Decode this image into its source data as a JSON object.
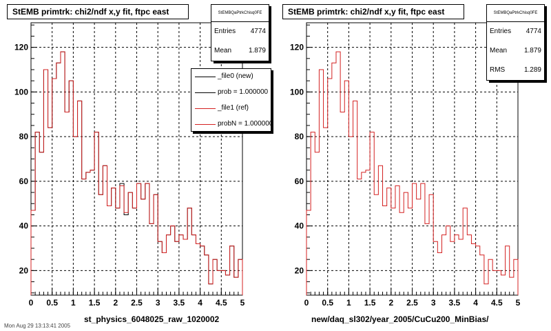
{
  "colors": {
    "new_color": "#000000",
    "ref_color": "#d42020",
    "frame": "#000000"
  },
  "panels": [
    {
      "title": "StEMB primtrk: chi2/ndf x,y fit, ftpc east",
      "xlabel": "st_physics_6048025_raw_1020002",
      "stats": {
        "name": "StEMBQaPtrkChisq0FE",
        "entries_label": "Entries",
        "entries": "4774",
        "mean_label": "Mean",
        "mean": "1.879"
      },
      "legend": [
        {
          "label": "_file0 (new)",
          "color": "#000000"
        },
        {
          "label": "prob = 1.000000",
          "color": "#000000"
        },
        {
          "label": "_file1 (ref)",
          "color": "#d42020"
        },
        {
          "label": "probN = 1.000000",
          "color": "#d42020"
        }
      ]
    },
    {
      "title": "StEMB primtrk: chi2/ndf x,y fit, ftpc east",
      "xlabel": "new/daq_sl302/year_2005/CuCu200_MinBias/",
      "stats": {
        "name": "StEMBQaPtrkChisq0FE",
        "entries_label": "Entries",
        "entries": "4774",
        "mean_label": "Mean",
        "mean": "1.879",
        "rms_label": "RMS",
        "rms": "1.289"
      }
    }
  ],
  "footer": "Mon Aug 29 13:13:41 2005",
  "chart_data": [
    {
      "type": "line",
      "title": "StEMB primtrk: chi2/ndf x,y fit, ftpc east",
      "xlabel": "st_physics_6048025_raw_1020002",
      "ylabel": "",
      "xlim": [
        0,
        5
      ],
      "ylim": [
        9,
        131
      ],
      "xticks": [
        "0",
        "0.5",
        "1",
        "1.5",
        "2",
        "2.5",
        "3",
        "3.5",
        "4",
        "4.5",
        "5"
      ],
      "yticks": [
        "20",
        "40",
        "60",
        "80",
        "100",
        "120"
      ],
      "grid": true,
      "bin_width": 0.1,
      "series": [
        {
          "name": "_file0 (new)",
          "color": "#000000",
          "values": [
            47,
            82,
            73,
            110,
            84,
            106,
            113,
            118,
            91,
            105,
            80,
            96,
            61,
            64,
            65,
            82,
            54,
            67,
            49,
            57,
            48,
            59,
            45,
            55,
            48,
            59,
            52,
            59,
            41,
            54,
            33,
            28,
            36,
            40,
            33,
            36,
            34,
            48,
            36,
            32,
            31,
            27,
            14,
            25,
            20,
            20,
            18,
            31,
            17,
            25
          ]
        },
        {
          "name": "_file1 (ref)",
          "color": "#d42020",
          "values": [
            47,
            82,
            73,
            110,
            84,
            106,
            113,
            118,
            91,
            105,
            80,
            96,
            61,
            64,
            65,
            82,
            54,
            67,
            49,
            57,
            48,
            58,
            46,
            55,
            48,
            59,
            52,
            59,
            41,
            54,
            33,
            28,
            36,
            40,
            33,
            36,
            34,
            48,
            36,
            32,
            31,
            27,
            14,
            25,
            20,
            20,
            18,
            31,
            17,
            25
          ]
        }
      ]
    },
    {
      "type": "line",
      "title": "StEMB primtrk: chi2/ndf x,y fit, ftpc east",
      "xlabel": "new/daq_sl302/year_2005/CuCu200_MinBias/",
      "ylabel": "",
      "xlim": [
        0,
        5
      ],
      "ylim": [
        9,
        131
      ],
      "xticks": [
        "0",
        "0.5",
        "1",
        "1.5",
        "2",
        "2.5",
        "3",
        "3.5",
        "4",
        "4.5",
        "5"
      ],
      "yticks": [
        "20",
        "40",
        "60",
        "80",
        "100",
        "120"
      ],
      "grid": true,
      "bin_width": 0.1,
      "series": [
        {
          "name": "",
          "color": "#d42020",
          "values": [
            47,
            82,
            73,
            110,
            84,
            106,
            113,
            118,
            91,
            105,
            80,
            96,
            61,
            64,
            65,
            82,
            54,
            67,
            49,
            57,
            48,
            58,
            46,
            55,
            48,
            59,
            52,
            59,
            41,
            54,
            33,
            28,
            36,
            40,
            33,
            36,
            34,
            48,
            36,
            32,
            31,
            27,
            14,
            25,
            20,
            20,
            18,
            31,
            17,
            25
          ]
        }
      ]
    }
  ]
}
